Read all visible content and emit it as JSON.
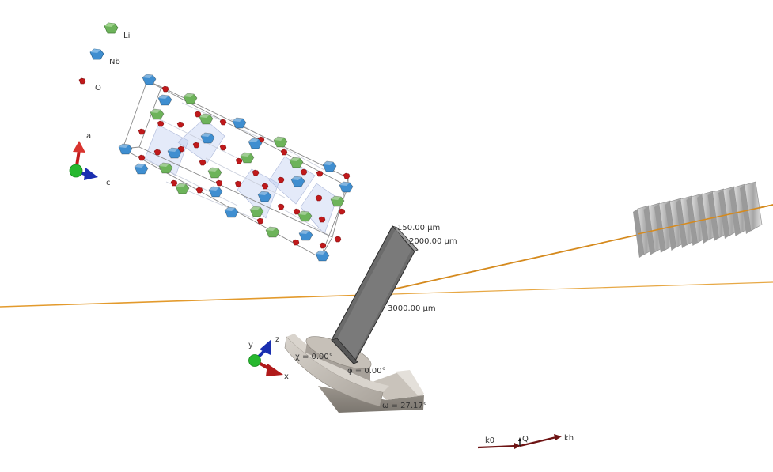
{
  "legend": {
    "items": [
      {
        "label": "Li",
        "color": "#6db35a"
      },
      {
        "label": "Nb",
        "color": "#3f8ed0"
      },
      {
        "label": "O",
        "color": "#c0191b"
      }
    ]
  },
  "crystal_axes": {
    "a": "a",
    "c": "c"
  },
  "lab_axes": {
    "x": "x",
    "y": "y",
    "z": "z"
  },
  "sample": {
    "thickness": "150.00 µm",
    "width": "2000.00 µm",
    "length": "3000.00 µm"
  },
  "goniometer": {
    "chi": "χ = 0.00°",
    "phi": "φ = 0.00°",
    "omega": "ω = 27.17°"
  },
  "scattering_vectors": {
    "k0": "k0",
    "q": "Q",
    "kh": "kh"
  },
  "colors": {
    "beam": "#e39a2c",
    "sample": "#6b6b6b",
    "goniometer": "#b7b1a8",
    "detector": "#b9b9b9",
    "vector": "#6e1414"
  }
}
